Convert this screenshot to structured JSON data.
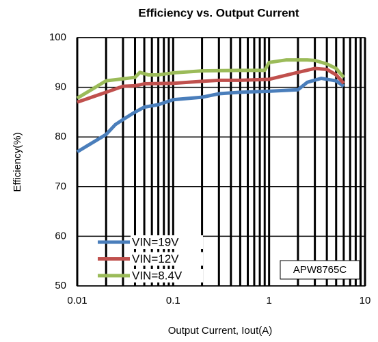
{
  "chart_data": {
    "type": "line",
    "title": "Efficiency vs. Output Current",
    "x_label": "Output Current, Iout(A)",
    "y_label": "Efficiency(%)",
    "annotation": "APW8765C",
    "xscale": "log",
    "xlim": [
      0.01,
      10
    ],
    "xticks": [
      0.01,
      0.1,
      1,
      10
    ],
    "xminorticks": [
      0.02,
      0.03,
      0.04,
      0.05,
      0.06,
      0.07,
      0.08,
      0.09,
      0.2,
      0.3,
      0.4,
      0.5,
      0.6,
      0.7,
      0.8,
      0.9,
      2,
      3,
      4,
      5,
      6,
      7,
      8,
      9
    ],
    "ylim": [
      50,
      100
    ],
    "yticks": [
      50,
      60,
      70,
      80,
      90,
      100
    ],
    "grid": true,
    "legend": "lower left",
    "series": [
      {
        "name": "VIN=19V",
        "color": "#4a7ebb",
        "x": [
          0.01,
          0.02,
          0.025,
          0.03,
          0.04,
          0.05,
          0.07,
          0.1,
          0.2,
          0.3,
          0.5,
          1,
          2,
          2.5,
          3.5,
          5,
          6
        ],
        "values": [
          77,
          80.5,
          82.5,
          83.5,
          85,
          86,
          86.5,
          87.5,
          88,
          88.7,
          89,
          89.2,
          89.5,
          91,
          91.8,
          91.3,
          90.2
        ]
      },
      {
        "name": "VIN=12V",
        "color": "#c0504d",
        "x": [
          0.01,
          0.02,
          0.03,
          0.04,
          0.05,
          0.1,
          0.2,
          0.3,
          0.5,
          1,
          2,
          3,
          4,
          5,
          6
        ],
        "values": [
          87,
          89,
          90.2,
          90.3,
          90.7,
          90.8,
          91.2,
          91.4,
          91.4,
          91.6,
          93,
          93.8,
          93.6,
          92.5,
          90.8
        ]
      },
      {
        "name": "VIN=8.4V",
        "color": "#9bbb59",
        "x": [
          0.01,
          0.02,
          0.03,
          0.04,
          0.045,
          0.055,
          0.07,
          0.1,
          0.2,
          0.5,
          0.9,
          1,
          1.5,
          2.5,
          3,
          4,
          5,
          6
        ],
        "values": [
          87.8,
          91.3,
          91.7,
          92,
          93,
          92.5,
          92.5,
          92.9,
          93.3,
          93.4,
          93.4,
          95,
          95.5,
          95.5,
          95.4,
          94.7,
          93.8,
          92
        ]
      }
    ]
  }
}
